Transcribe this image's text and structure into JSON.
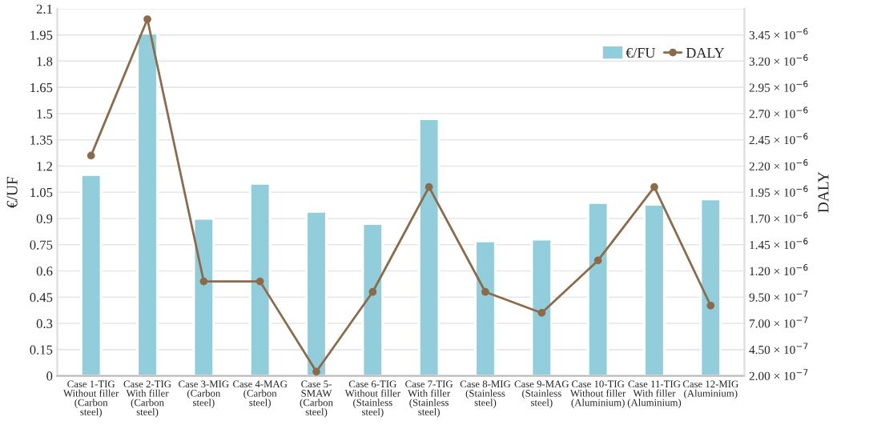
{
  "chart_data": {
    "type": "bar",
    "ylabel": "€/UF",
    "y2label": "DALY",
    "categories": [
      "Case 1-TIG\nWithout filler\n(Carbon\nsteel)",
      "Case 2-TIG\nWith filler\n(Carbon\nsteel)",
      "Case 3-MIG\n(Carbon\nsteel)",
      "Case 4-MAG\n(Carbon\nsteel)",
      "Case 5-\nSMAW\n(Carbon\nsteel)",
      "Case 6-TIG\nWithout filler\n(Stainless\nsteel)",
      "Case 7-TIG\nWith filler\n(Stainless\nsteel)",
      "Case 8-MIG\n(Stainless\nsteel)",
      "Case 9-MAG\n(Stainless\nsteel)",
      "Case 10-TIG\nWithout filler\n(Aluminium)",
      "Case 11-TIG\nWith filler\n(Aluminium)",
      "Case 12-MIG\n(Aluminium)"
    ],
    "series": [
      {
        "name": "€/FU",
        "color": "#92cddc",
        "values": [
          1.15,
          1.96,
          0.9,
          1.1,
          0.94,
          0.87,
          1.47,
          0.77,
          0.78,
          0.99,
          0.98,
          1.01
        ]
      },
      {
        "name": "DALY",
        "type": "line",
        "axis": "y2",
        "color": "#8c6a4a",
        "marker": "circle",
        "values": [
          2.3e-06,
          3.6e-06,
          1.1e-06,
          1.1e-06,
          2.4e-07,
          1e-06,
          2e-06,
          1e-06,
          8e-07,
          1.3e-06,
          2e-06,
          8.7e-07
        ]
      }
    ],
    "ylim": [
      0,
      2.1
    ],
    "yticks": [
      0,
      0.15,
      0.3,
      0.45,
      0.6,
      0.75,
      0.9,
      1.05,
      1.2,
      1.35,
      1.5,
      1.65,
      1.8,
      1.95,
      2.1
    ],
    "y2lim": [
      2e-07,
      3.7e-06
    ],
    "y2ticks": [
      {
        "value": 2e-07,
        "label": "2.00 × 10$^{−7}$"
      },
      {
        "value": 4.5e-07,
        "label": "4.50 × 10$^{−7}$"
      },
      {
        "value": 7e-07,
        "label": "7.00 × 10$^{−7}$"
      },
      {
        "value": 9.5e-07,
        "label": "9.50 × 10$^{−7}$"
      },
      {
        "value": 1.2e-06,
        "label": "1.20 × 10$^{−6}$"
      },
      {
        "value": 1.45e-06,
        "label": "1.45 × 10$^{−6}$"
      },
      {
        "value": 1.7e-06,
        "label": "1.70 × 10$^{−6}$"
      },
      {
        "value": 1.95e-06,
        "label": "1.95 × 10$^{−6}$"
      },
      {
        "value": 2.2e-06,
        "label": "2.20 × 10$^{−6}$"
      },
      {
        "value": 2.45e-06,
        "label": "2.45 × 10$^{−6}$"
      },
      {
        "value": 2.7e-06,
        "label": "2.70 × 10$^{−6}$"
      },
      {
        "value": 2.95e-06,
        "label": "2.95 × 10$^{−6}$"
      },
      {
        "value": 3.2e-06,
        "label": "3.20 × 10$^{−6}$"
      },
      {
        "value": 3.45e-06,
        "label": "3.45 × 10$^{−6}$"
      }
    ],
    "grid": "y",
    "legend": "top right"
  }
}
